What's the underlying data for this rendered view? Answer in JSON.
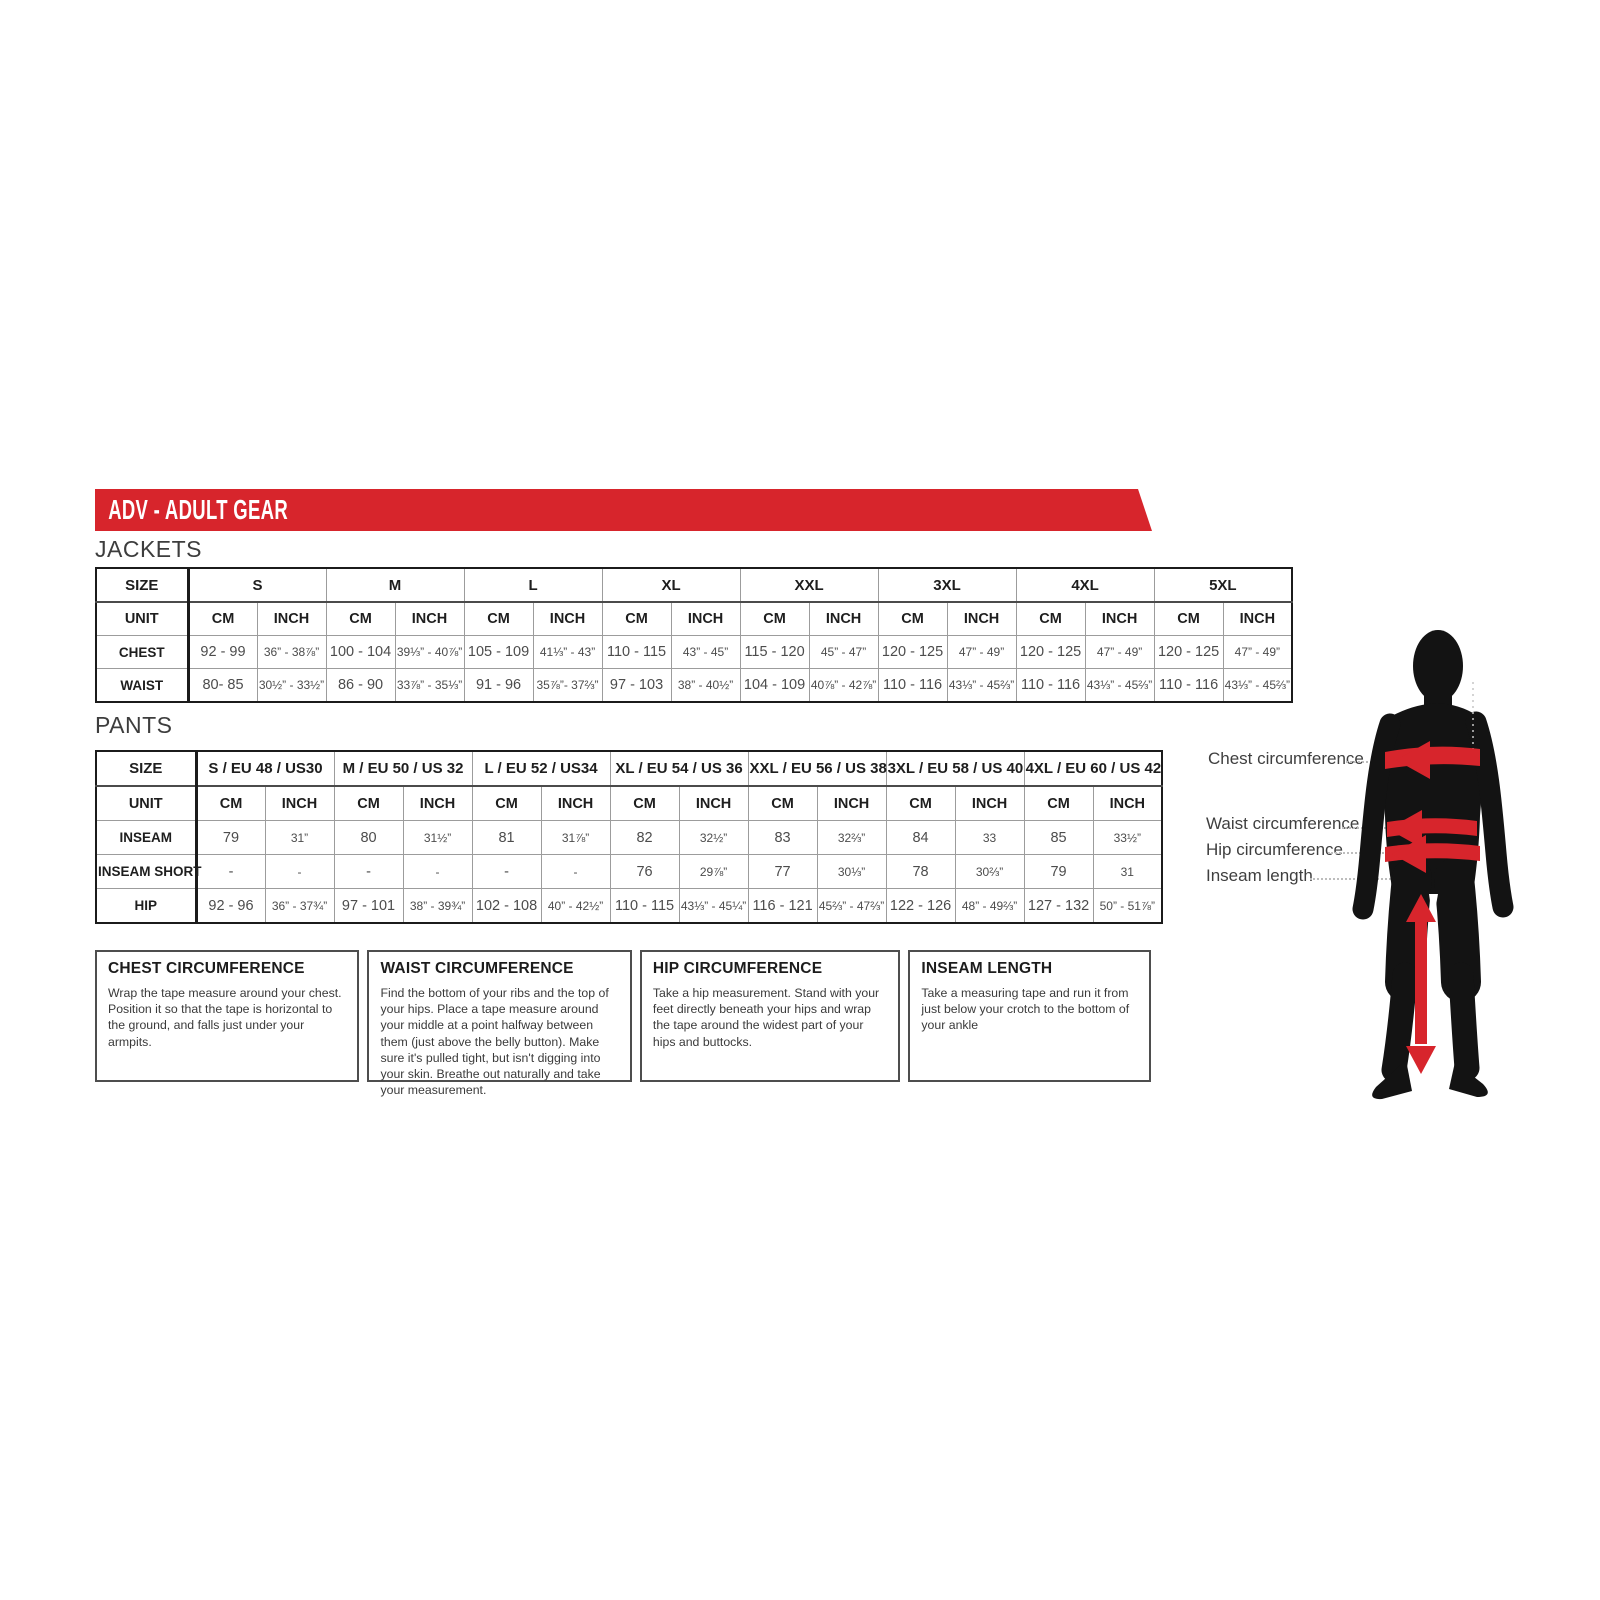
{
  "banner": {
    "title": "ADV - ADULT GEAR",
    "color": "#d7252c"
  },
  "sections": {
    "jackets_label": "JACKETS",
    "pants_label": "PANTS"
  },
  "jackets_table": {
    "corner_label": "SIZE",
    "unit_label": "UNIT",
    "cm_label": "CM",
    "inch_label": "INCH",
    "sizes": [
      "S",
      "M",
      "L",
      "XL",
      "XXL",
      "3XL",
      "4XL",
      "5XL"
    ],
    "rows": [
      {
        "label": "CHEST",
        "cm": [
          "92 - 99",
          "100 - 104",
          "105 - 109",
          "110 - 115",
          "115 - 120",
          "120 - 125",
          "120 - 125",
          "120 - 125"
        ],
        "inch": [
          "36” - 38⅞”",
          "39⅓” - 40⅞”",
          "41⅓” - 43”",
          "43” - 45”",
          "45” - 47”",
          "47” - 49”",
          "47” - 49”",
          "47” - 49”"
        ]
      },
      {
        "label": "WAIST",
        "cm": [
          "80- 85",
          "86 - 90",
          "91 - 96",
          "97 - 103",
          "104 - 109",
          "110 - 116",
          "110 - 116",
          "110 - 116"
        ],
        "inch": [
          "30½” - 33½”",
          "33⅞” - 35⅓”",
          "35⅞”- 37⅔”",
          "38” - 40½”",
          "40⅞” - 42⅞”",
          "43⅓” - 45⅔”",
          "43⅓” - 45⅔”",
          "43⅓” - 45⅔”"
        ]
      }
    ]
  },
  "pants_table": {
    "corner_label": "SIZE",
    "unit_label": "UNIT",
    "cm_label": "CM",
    "inch_label": "INCH",
    "sizes": [
      "S / EU 48 / US30",
      "M / EU 50 / US 32",
      "L / EU 52 / US34",
      "XL / EU 54 / US 36",
      "XXL / EU 56 / US 38",
      "3XL / EU 58 / US 40",
      "4XL / EU 60 / US 42"
    ],
    "rows": [
      {
        "label": "INSEAM",
        "cm": [
          "79",
          "80",
          "81",
          "82",
          "83",
          "84",
          "85"
        ],
        "inch": [
          "31”",
          "31½”",
          "31⅞”",
          "32½”",
          "32⅔”",
          "33",
          "33½”"
        ]
      },
      {
        "label": "INSEAM SHORT",
        "cm": [
          "-",
          "-",
          "-",
          "76",
          "77",
          "78",
          "79"
        ],
        "inch": [
          "-",
          "-",
          "-",
          "29⅞”",
          "30⅓”",
          "30⅔”",
          "31"
        ]
      },
      {
        "label": "HIP",
        "cm": [
          "92 - 96",
          "97 - 101",
          "102 - 108",
          "110 - 115",
          "116 - 121",
          "122 - 126",
          "127 - 132"
        ],
        "inch": [
          "36” - 37¾”",
          "38” - 39¾”",
          "40” - 42½”",
          "43⅓” - 45¼”",
          "45⅔” - 47⅔”",
          "48” - 49⅔”",
          "50” - 51⅞”"
        ]
      }
    ]
  },
  "guides": [
    {
      "title": "CHEST CIRCUMFERENCE",
      "body": "Wrap the tape measure around your chest. Position it so that the tape is horizontal to the ground, and falls just under your armpits."
    },
    {
      "title": "WAIST CIRCUMFERENCE",
      "body": "Find the bottom of your ribs and the top of your hips. Place a tape measure around your middle at a point halfway between them (just above the belly button). Make sure it's pulled tight, but isn't digging into your skin. Breathe out naturally and take your measurement."
    },
    {
      "title": "HIP CIRCUMFERENCE",
      "body": "Take a hip measurement. Stand with your feet directly beneath your hips and wrap the tape around the widest part of your hips and buttocks."
    },
    {
      "title": "INSEAM LENGTH",
      "body": "Take a measuring tape and run it from just below your crotch to the bottom of your ankle"
    }
  ],
  "figure": {
    "labels": [
      "Chest circumference",
      "Waist circumference",
      "Hip circumference",
      "Inseam length"
    ],
    "accent_color": "#d7252c"
  }
}
